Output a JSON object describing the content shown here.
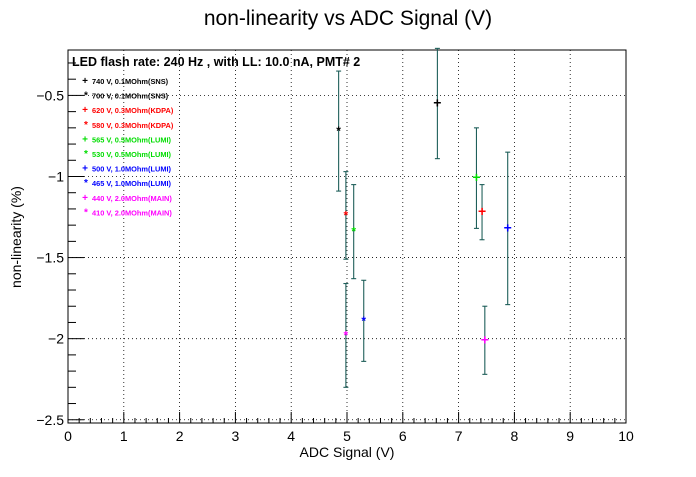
{
  "chart_data": {
    "type": "scatter",
    "title": "non-linearity vs ADC Signal (V)",
    "subtitle": "LED flash rate: 240 Hz , with LL: 10.0 nA, PMT# 2",
    "xlabel": "ADC Signal (V)",
    "ylabel": "non-linearity (%)",
    "xlim": [
      0,
      10
    ],
    "ylim": [
      -2.52,
      -0.22
    ],
    "x_ticks": [
      0,
      1,
      2,
      3,
      4,
      5,
      6,
      7,
      8,
      9,
      10
    ],
    "x_tick_labels": [
      "0",
      "1",
      "2",
      "3",
      "4",
      "5",
      "6",
      "7",
      "8",
      "9",
      "10"
    ],
    "y_ticks": [
      -2.5,
      -2,
      -1.5,
      -1,
      -0.5
    ],
    "y_tick_labels": [
      "−2.5",
      "−2",
      "−1.5",
      "−1",
      "−0.5"
    ],
    "grid": true,
    "legend_position": "top-left",
    "error_bar_color": "#1f5f5a",
    "series": [
      {
        "name": "740 V, 0.1MOhm(SNS)",
        "marker": "+",
        "color": "#000000",
        "x": 6.62,
        "y": -0.55,
        "y_err": 0.34
      },
      {
        "name": "700 V, 0.1MOhm(SNS)",
        "marker": "*",
        "color": "#000000",
        "x": 4.85,
        "y": -0.72,
        "y_err": 0.37
      },
      {
        "name": "620 V, 0.3MOhm(KDPA)",
        "marker": "+",
        "color": "#ff0000",
        "x": 7.42,
        "y": -1.22,
        "y_err": 0.17
      },
      {
        "name": "580 V, 0.3MOhm(KDPA)",
        "marker": "*",
        "color": "#ff0000",
        "x": 4.98,
        "y": -1.24,
        "y_err": 0.27
      },
      {
        "name": "565 V, 0.5MOhm(LUMI)",
        "marker": "+",
        "color": "#00dd00",
        "x": 7.32,
        "y": -1.01,
        "y_err": 0.31
      },
      {
        "name": "530 V, 0.5MOhm(LUMI)",
        "marker": "*",
        "color": "#00dd00",
        "x": 5.12,
        "y": -1.34,
        "y_err": 0.29
      },
      {
        "name": "500 V, 1.0MOhm(LUMI)",
        "marker": "+",
        "color": "#0000ff",
        "x": 7.88,
        "y": -1.32,
        "y_err": 0.47
      },
      {
        "name": "465 V, 1.0MOhm(LUMI)",
        "marker": "*",
        "color": "#0000ff",
        "x": 5.3,
        "y": -1.89,
        "y_err": 0.25
      },
      {
        "name": "440 V, 2.0MOhm(MAIN)",
        "marker": "+",
        "color": "#ff00ff",
        "x": 7.47,
        "y": -2.01,
        "y_err": 0.21
      },
      {
        "name": "410 V, 2.0MOhm(MAIN)",
        "marker": "*",
        "color": "#ff00ff",
        "x": 4.98,
        "y": -1.98,
        "y_err": 0.32
      }
    ]
  }
}
